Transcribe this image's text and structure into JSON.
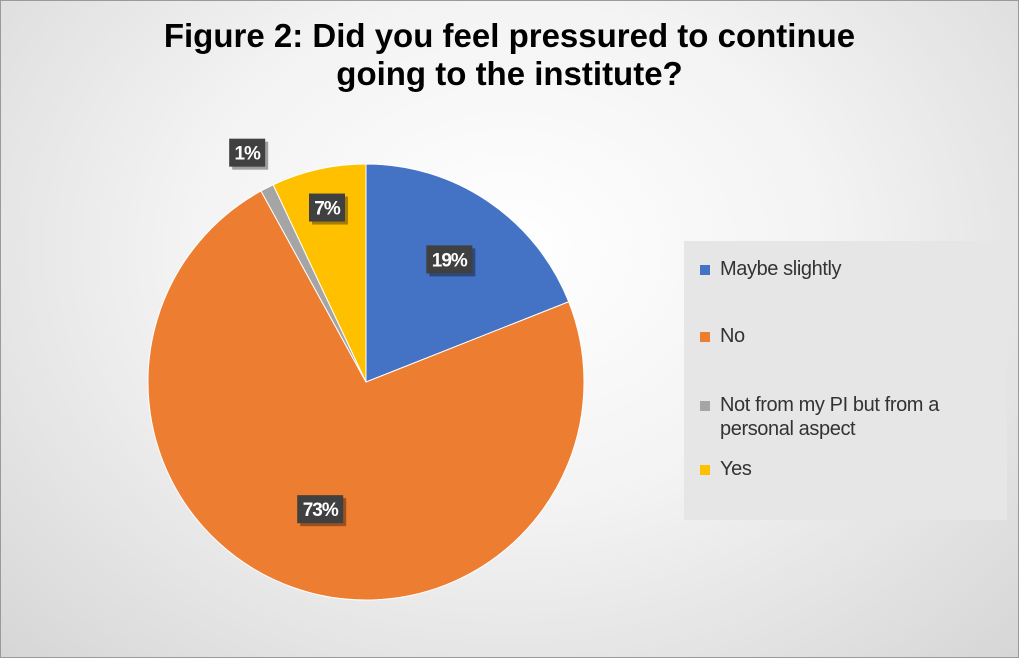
{
  "title_lines": [
    "Figure 2: Did you feel pressured to continue",
    "going to the institute?"
  ],
  "chart_data": {
    "type": "pie",
    "title": "Figure 2: Did you feel pressured to continue going to the institute?",
    "categories": [
      "Maybe slightly",
      "No",
      "Not from my PI but from a personal aspect",
      "Yes"
    ],
    "values": [
      19,
      73,
      1,
      7
    ],
    "data_labels": [
      "19%",
      "73%",
      "1%",
      "7%"
    ],
    "colors": [
      "#4472C4",
      "#ED7D31",
      "#A5A5A5",
      "#FFC000"
    ],
    "label_colors": {
      "box": "#404040",
      "text": "#ffffff"
    },
    "legend_position": "right"
  }
}
